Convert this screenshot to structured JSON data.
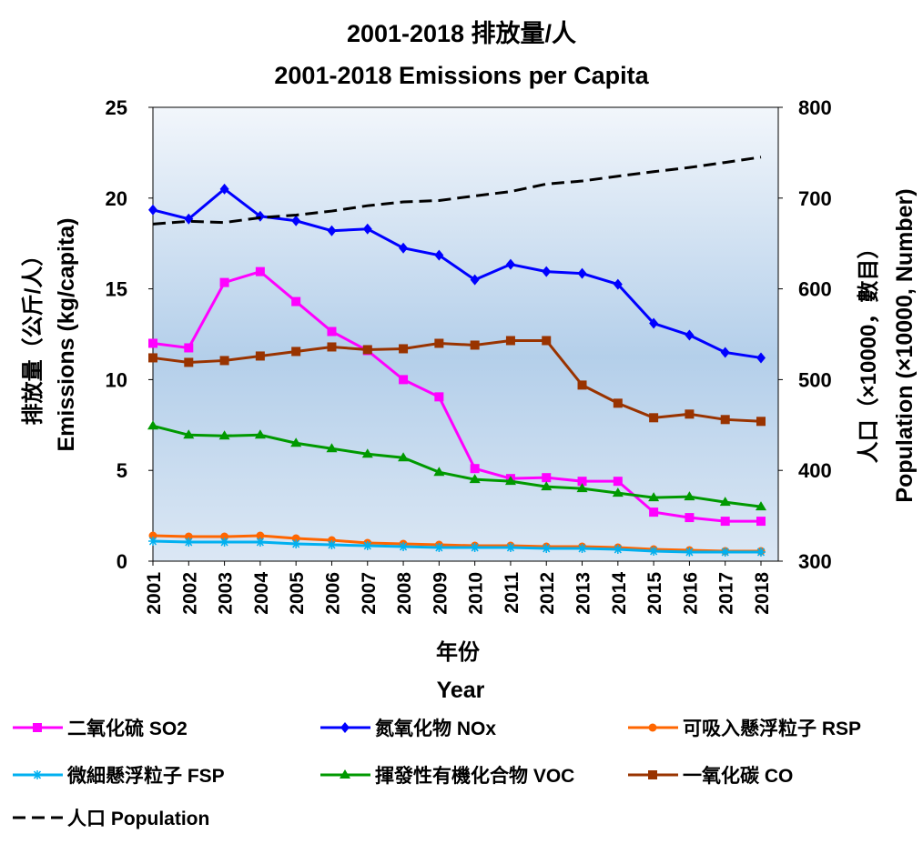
{
  "chart_data": {
    "type": "line",
    "title": "2001-2018 排放量/人",
    "subtitle": "2001-2018 Emissions per Capita",
    "xlabel": "年份",
    "xlabel_en": "Year",
    "ylabel": "排放量（公斤/人）",
    "ylabel_en": "Emissions (kg/capita)",
    "y2label": "人口（×10000，數目）",
    "y2label_en": "Population (×10000, Number)",
    "ylim": [
      0,
      25
    ],
    "y2lim": [
      300,
      800
    ],
    "yticks": [
      "0",
      "5",
      "10",
      "15",
      "20",
      "25"
    ],
    "y2ticks": [
      "300",
      "400",
      "500",
      "600",
      "700",
      "800"
    ],
    "grid": false,
    "legend_position": "bottom",
    "x": [
      "2001",
      "2002",
      "2003",
      "2004",
      "2005",
      "2006",
      "2007",
      "2008",
      "2009",
      "2010",
      "2011",
      "2012",
      "2013",
      "2014",
      "2015",
      "2016",
      "2017",
      "2018"
    ],
    "series": [
      {
        "name": "二氧化硫 SO2",
        "color": "#ff00ff",
        "marker": "square",
        "axis": "left",
        "values": [
          12.0,
          11.75,
          15.35,
          15.95,
          14.3,
          12.65,
          11.6,
          10.0,
          9.05,
          5.1,
          4.55,
          4.6,
          4.4,
          4.4,
          2.7,
          2.4,
          2.2,
          2.2
        ]
      },
      {
        "name": "氮氧化物 NOx",
        "color": "#0000ff",
        "marker": "diamond",
        "axis": "left",
        "values": [
          19.35,
          18.85,
          20.5,
          19.0,
          18.75,
          18.2,
          18.3,
          17.25,
          16.85,
          15.5,
          16.35,
          15.95,
          15.85,
          15.25,
          13.1,
          12.45,
          11.5,
          11.2
        ]
      },
      {
        "name": "可吸入懸浮粒子 RSP",
        "color": "#ff6600",
        "marker": "circle",
        "axis": "left",
        "values": [
          1.4,
          1.35,
          1.35,
          1.4,
          1.25,
          1.15,
          1.0,
          0.95,
          0.9,
          0.85,
          0.85,
          0.8,
          0.8,
          0.75,
          0.65,
          0.6,
          0.55,
          0.55
        ]
      },
      {
        "name": "微細懸浮粒子 FSP",
        "color": "#00b0f0",
        "marker": "asterisk",
        "axis": "left",
        "values": [
          1.1,
          1.05,
          1.05,
          1.05,
          0.95,
          0.9,
          0.85,
          0.8,
          0.75,
          0.75,
          0.75,
          0.7,
          0.7,
          0.65,
          0.55,
          0.5,
          0.5,
          0.5
        ]
      },
      {
        "name": "揮發性有機化合物 VOC",
        "color": "#009900",
        "marker": "triangle",
        "axis": "left",
        "values": [
          7.45,
          6.95,
          6.9,
          6.95,
          6.5,
          6.2,
          5.9,
          5.7,
          4.9,
          4.5,
          4.4,
          4.1,
          4.0,
          3.75,
          3.5,
          3.55,
          3.25,
          3.0
        ]
      },
      {
        "name": "一氧化碳 CO",
        "color": "#993300",
        "marker": "square",
        "axis": "left",
        "values": [
          11.2,
          10.95,
          11.05,
          11.3,
          11.55,
          11.8,
          11.65,
          11.7,
          12.0,
          11.9,
          12.15,
          12.15,
          9.7,
          8.7,
          7.9,
          8.1,
          7.8,
          7.7
        ]
      },
      {
        "name": "人口 Population",
        "color": "#000000",
        "marker": "none",
        "dash": true,
        "axis": "right",
        "values": [
          671.4,
          674.4,
          673.1,
          678.4,
          681.3,
          685.7,
          691.6,
          695.8,
          697.3,
          702.4,
          707.2,
          715.5,
          718.8,
          724.1,
          729.1,
          733.7,
          739.3,
          745.1
        ]
      }
    ]
  }
}
